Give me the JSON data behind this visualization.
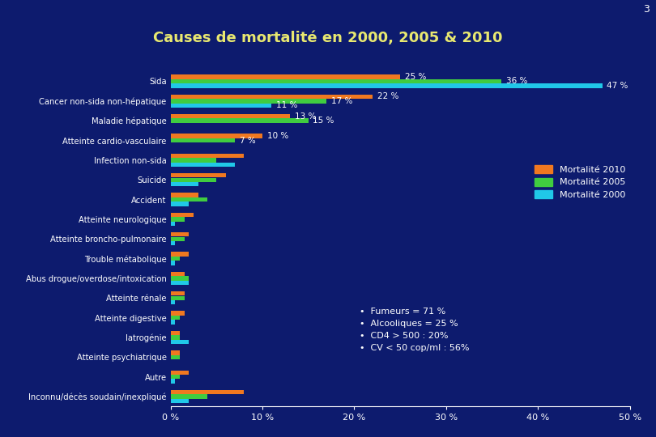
{
  "title": "Causes de mortalité en 2000, 2005 & 2010",
  "background_color": "#0d1b6e",
  "title_color": "#e8e870",
  "text_color": "#ffffff",
  "page_number": "3",
  "categories": [
    "Sida",
    "Cancer non-sida non-hépatique",
    "Maladie hépatique",
    "Atteinte cardio-vasculaire",
    "Infection non-sida",
    "Suicide",
    "Accident",
    "Atteinte neurologique",
    "Atteinte broncho-pulmonaire",
    "Trouble métabolique",
    "Abus drogue/overdose/intoxication",
    "Atteinte rénale",
    "Atteinte digestive",
    "Iatrogénie",
    "Atteinte psychiatrique",
    "Autre",
    "Inconnu/décès soudain/inexpliqué"
  ],
  "values_2010": [
    25,
    22,
    13,
    10,
    8,
    6,
    3,
    2.5,
    2,
    2,
    1.5,
    1.5,
    1.5,
    1,
    1,
    2,
    8
  ],
  "values_2005": [
    36,
    17,
    15,
    7,
    5,
    5,
    4,
    1.5,
    1.5,
    1,
    2,
    1.5,
    1,
    1,
    1,
    1,
    4
  ],
  "values_2000": [
    47,
    11,
    0,
    0,
    7,
    3,
    2,
    0.5,
    0.5,
    0.5,
    2,
    0.5,
    0.5,
    2,
    0,
    0.5,
    2
  ],
  "color_2010": "#f07820",
  "color_2005": "#40cc40",
  "color_2000": "#20c8e8",
  "xlim": [
    0,
    50
  ],
  "xticks": [
    0,
    10,
    20,
    30,
    40,
    50
  ],
  "xtick_labels": [
    "0 %",
    "10 %",
    "20 %",
    "30 %",
    "40 %",
    "50 %"
  ],
  "bullet_text": [
    "Fumeurs = 71 %",
    "Alcooliques = 25 %",
    "CD4 > 500 : 20%",
    "CV < 50 cop/ml : 56%"
  ],
  "annot_sida_2010": 25,
  "annot_sida_2005": 36,
  "annot_sida_2000": 47,
  "annot_cancer_2010": 22,
  "annot_cancer_2005": 17,
  "annot_cancer_2000": 11,
  "annot_maladie_2005": 15,
  "annot_maladie_2010": 13,
  "annot_cardio_2010": 10,
  "annot_cardio_2005": 7
}
